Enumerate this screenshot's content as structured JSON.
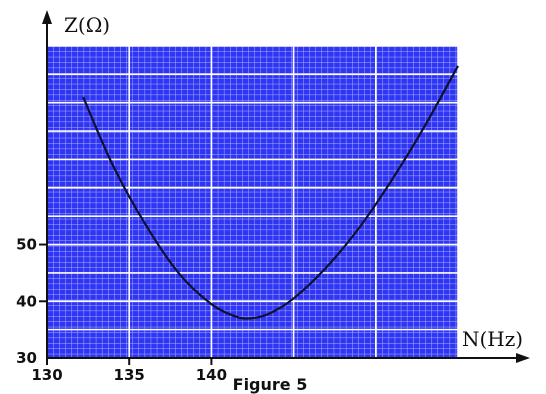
{
  "chart_data": {
    "type": "line",
    "ylabel": "Z(Ω)",
    "xlabel": "N(Hz)",
    "caption": "Figure 5",
    "x_ticks": [
      "130",
      "135",
      "140"
    ],
    "y_ticks": [
      "30",
      "40",
      "50"
    ],
    "xlim": [
      130,
      155
    ],
    "ylim": [
      30,
      85
    ],
    "grid": true,
    "colors": {
      "plot_background": "#2f35f2",
      "grid_minor": "#a8b0ff",
      "grid_major": "#ffffff",
      "curve": "#101030"
    },
    "series": [
      {
        "values": [
          {
            "x": 132.2,
            "y": 76
          },
          {
            "x": 134,
            "y": 64
          },
          {
            "x": 136,
            "y": 53.5
          },
          {
            "x": 138,
            "y": 45
          },
          {
            "x": 140,
            "y": 39.5
          },
          {
            "x": 141.5,
            "y": 37.3
          },
          {
            "x": 142.4,
            "y": 37
          },
          {
            "x": 143.5,
            "y": 37.8
          },
          {
            "x": 145,
            "y": 40.5
          },
          {
            "x": 147,
            "y": 46
          },
          {
            "x": 149,
            "y": 53
          },
          {
            "x": 151,
            "y": 61.5
          },
          {
            "x": 153,
            "y": 71
          },
          {
            "x": 155,
            "y": 81.5
          }
        ]
      }
    ]
  }
}
